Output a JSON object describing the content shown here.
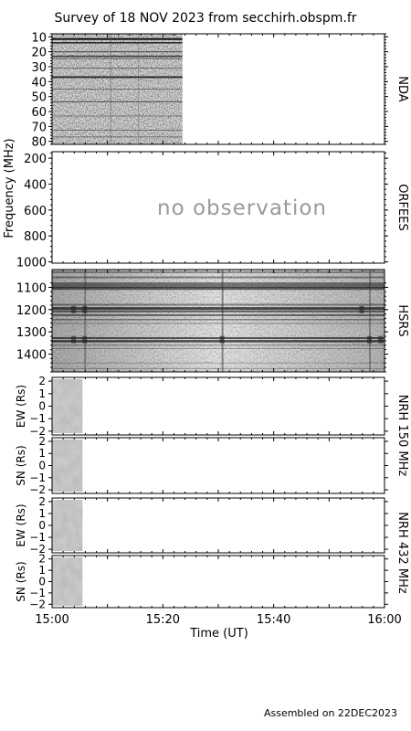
{
  "title": "Survey of 18 NOV 2023 from secchirh.obspm.fr",
  "footer": "Assembled on 22DEC2023",
  "colors": {
    "frame": "#000000",
    "background": "#ffffff",
    "no_observation_text": "#9a9a9a"
  },
  "chart_data": {
    "type": "heatmap",
    "x_axis": {
      "label": "Time (UT)",
      "range": [
        "15:00",
        "16:00"
      ],
      "tick_labels": [
        "15:00",
        "15:20",
        "15:40",
        "16:00"
      ],
      "tick_minutes": [
        0,
        20,
        40,
        60
      ],
      "minor_step_minutes": 2
    },
    "shared_ylabel": "Frequency (MHz)",
    "panels": [
      {
        "name": "NDA",
        "y_range": [
          8,
          82
        ],
        "y_ticks": [
          10,
          20,
          30,
          40,
          50,
          60,
          70,
          80
        ],
        "data_coverage_minutes": [
          0,
          23.5
        ]
      },
      {
        "name": "ORFEES",
        "y_range": [
          150,
          1010
        ],
        "y_ticks": [
          200,
          400,
          600,
          800,
          1000
        ],
        "message": "no observation"
      },
      {
        "name": "HSRS",
        "y_range": [
          1020,
          1480
        ],
        "y_ticks": [
          1100,
          1200,
          1300,
          1400
        ],
        "data_coverage_minutes": [
          0,
          60
        ]
      },
      {
        "name": "NRH 150 MHz",
        "ylabel": "EW (Rs)",
        "y_range": [
          -2.3,
          2.3
        ],
        "y_tick_labels": [
          "2",
          "1",
          "0",
          "−1",
          "−2"
        ],
        "data_coverage_minutes": [
          0,
          5.5
        ]
      },
      {
        "name": "",
        "ylabel": "SN (Rs)",
        "y_range": [
          -2.3,
          2.3
        ],
        "y_tick_labels": [
          "2",
          "1",
          "0",
          "−1",
          "−2"
        ],
        "data_coverage_minutes": [
          0,
          5.5
        ]
      },
      {
        "name": "NRH 432 MHz",
        "ylabel": "EW (Rs)",
        "y_range": [
          -2.3,
          2.3
        ],
        "y_tick_labels": [
          "2",
          "1",
          "0",
          "−1",
          "−2"
        ],
        "data_coverage_minutes": [
          0,
          5.5
        ]
      },
      {
        "name": "",
        "ylabel": "SN (Rs)",
        "y_range": [
          -2.3,
          2.3
        ],
        "y_tick_labels": [
          "2",
          "1",
          "0",
          "−1",
          "−2"
        ],
        "data_coverage_minutes": [
          0,
          5.5
        ]
      }
    ]
  }
}
